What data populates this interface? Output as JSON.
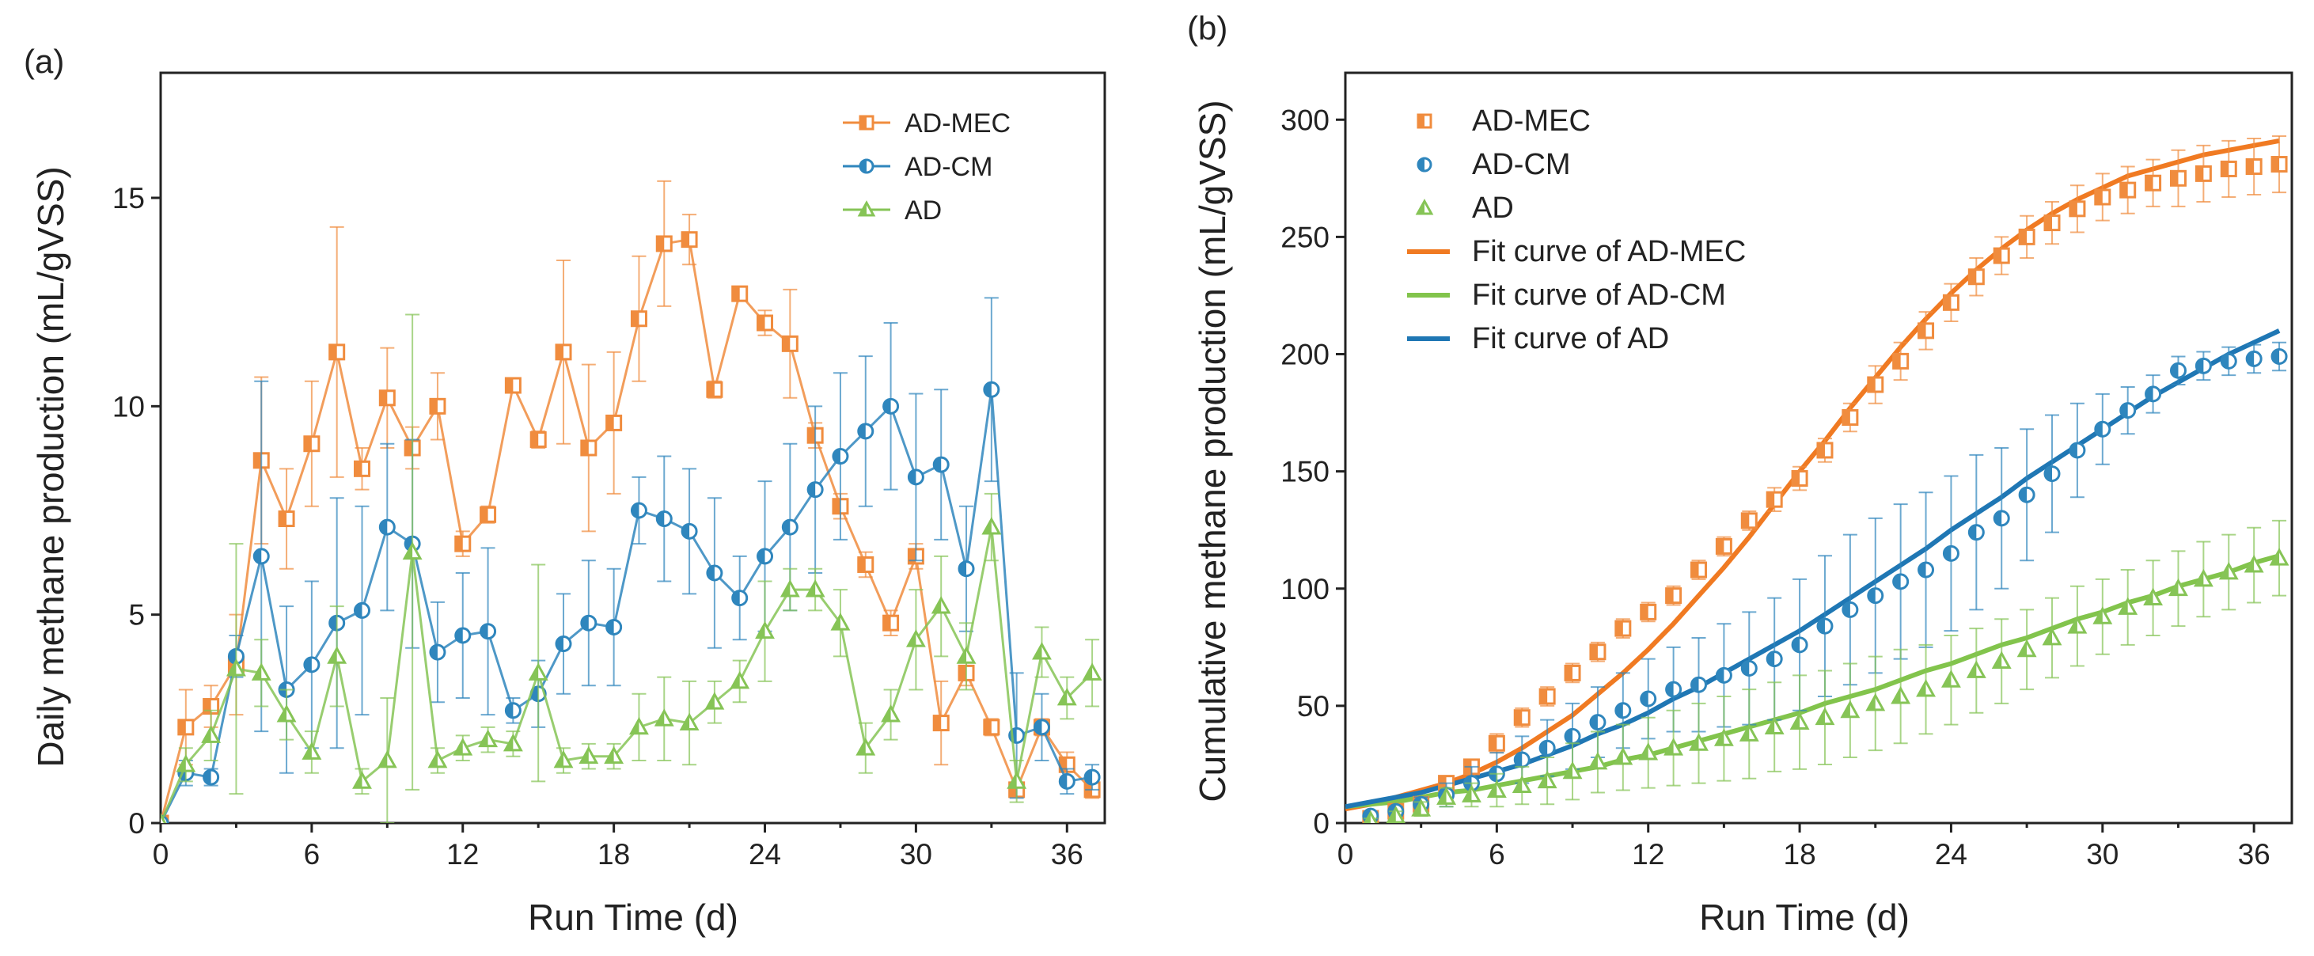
{
  "colors": {
    "AD-MEC": "#f08c3e",
    "AD-CM": "#2f86bd",
    "AD": "#86c456"
  },
  "fit_colors": {
    "AD-MEC": "#f07a22",
    "AD-CM": "#82c44c",
    "AD": "#1f77b4"
  },
  "chart_data": [
    {
      "panel": "(a)",
      "type": "line",
      "title": "",
      "xlabel": "Run Time (d)",
      "ylabel": "Daily methane production (mL/gVSS)",
      "xlim": [
        0,
        37.5
      ],
      "ylim": [
        0,
        18
      ],
      "xticks": [
        0,
        6,
        12,
        18,
        24,
        30,
        36
      ],
      "yticks": [
        0,
        5,
        10,
        15
      ],
      "legend_position": "top-right",
      "series": [
        {
          "name": "AD-MEC",
          "color_key": "AD-MEC",
          "marker": "square",
          "x": [
            0,
            1,
            2,
            3,
            4,
            5,
            6,
            7,
            8,
            9,
            10,
            11,
            12,
            13,
            14,
            15,
            16,
            17,
            18,
            19,
            20,
            21,
            22,
            23,
            24,
            25,
            26,
            27,
            28,
            29,
            30,
            31,
            32,
            33,
            34,
            35,
            36,
            37
          ],
          "values": [
            0,
            2.3,
            2.8,
            3.8,
            8.7,
            7.3,
            9.1,
            11.3,
            8.5,
            10.2,
            9.0,
            10.0,
            6.7,
            7.4,
            10.5,
            9.2,
            11.3,
            9.0,
            9.6,
            12.1,
            13.9,
            14.0,
            10.4,
            12.7,
            12.0,
            11.5,
            9.3,
            7.6,
            6.2,
            4.8,
            6.4,
            2.4,
            3.6,
            2.3,
            0.8,
            2.3,
            1.4,
            0.8
          ],
          "errors": [
            0,
            0.9,
            0.5,
            1.2,
            2.0,
            1.2,
            1.5,
            3.0,
            0.5,
            1.2,
            0.5,
            0.8,
            0.3,
            0.2,
            0.1,
            0.2,
            2.2,
            2.0,
            1.7,
            1.5,
            1.5,
            0.6,
            0.2,
            0.1,
            0.3,
            1.3,
            0.3,
            0.3,
            0.3,
            0.3,
            0.3,
            1.0,
            0.3,
            0.2,
            0.1,
            0.2,
            0.3,
            0.2
          ]
        },
        {
          "name": "AD-CM",
          "color_key": "AD-CM",
          "marker": "circle",
          "x": [
            0,
            1,
            2,
            3,
            4,
            5,
            6,
            7,
            8,
            9,
            10,
            11,
            12,
            13,
            14,
            15,
            16,
            17,
            18,
            19,
            20,
            21,
            22,
            23,
            24,
            25,
            26,
            27,
            28,
            29,
            30,
            31,
            32,
            33,
            34,
            35,
            36,
            37
          ],
          "values": [
            0,
            1.2,
            1.1,
            4.0,
            6.4,
            3.2,
            3.8,
            4.8,
            5.1,
            7.1,
            6.7,
            4.1,
            4.5,
            4.6,
            2.7,
            3.1,
            4.3,
            4.8,
            4.7,
            7.5,
            7.3,
            7.0,
            6.0,
            5.4,
            6.4,
            7.1,
            8.0,
            8.8,
            9.4,
            10.0,
            8.3,
            8.6,
            6.1,
            10.4,
            2.1,
            2.3,
            1.0,
            1.1
          ],
          "errors": [
            0,
            0.3,
            0.2,
            0.5,
            4.2,
            2.0,
            2.0,
            3.0,
            2.5,
            2.0,
            2.5,
            1.2,
            1.5,
            2.0,
            0.3,
            0.8,
            1.2,
            1.5,
            1.4,
            0.8,
            1.5,
            1.5,
            1.8,
            1.0,
            1.8,
            2.0,
            2.0,
            2.0,
            1.8,
            2.0,
            2.0,
            1.8,
            1.5,
            2.2,
            1.5,
            0.8,
            0.3,
            0.3
          ]
        },
        {
          "name": "AD",
          "color_key": "AD",
          "marker": "triangle",
          "x": [
            0,
            1,
            2,
            3,
            4,
            5,
            6,
            7,
            8,
            9,
            10,
            11,
            12,
            13,
            14,
            15,
            16,
            17,
            18,
            19,
            20,
            21,
            22,
            23,
            24,
            25,
            26,
            27,
            28,
            29,
            30,
            31,
            32,
            33,
            34,
            35,
            36,
            37
          ],
          "values": [
            0,
            1.4,
            2.1,
            3.7,
            3.6,
            2.6,
            1.7,
            4.0,
            1.0,
            1.5,
            6.5,
            1.5,
            1.8,
            2.0,
            1.9,
            3.6,
            1.5,
            1.6,
            1.6,
            2.3,
            2.5,
            2.4,
            2.9,
            3.4,
            4.6,
            5.6,
            5.6,
            4.8,
            1.8,
            2.6,
            4.4,
            5.2,
            4.0,
            7.1,
            1.0,
            4.1,
            3.0,
            3.6
          ],
          "errors": [
            0,
            0.4,
            0.6,
            3.0,
            0.8,
            0.6,
            0.5,
            1.2,
            0.3,
            1.5,
            5.7,
            0.3,
            0.3,
            0.3,
            0.3,
            2.6,
            0.3,
            0.3,
            0.3,
            0.8,
            1.0,
            1.0,
            0.5,
            0.5,
            1.2,
            0.5,
            0.5,
            0.8,
            0.6,
            0.6,
            1.2,
            1.2,
            0.8,
            0.8,
            0.5,
            0.6,
            0.5,
            0.8
          ]
        }
      ]
    },
    {
      "panel": "(b)",
      "type": "scatter",
      "title": "",
      "xlabel": "Run Time (d)",
      "ylabel": "Cumulative methane production (mL/gVSS)",
      "xlim": [
        0,
        37.5
      ],
      "ylim": [
        0,
        320
      ],
      "xticks": [
        0,
        6,
        12,
        18,
        24,
        30,
        36
      ],
      "yticks": [
        0,
        50,
        100,
        150,
        200,
        250,
        300
      ],
      "legend_position": "top-left",
      "series": [
        {
          "name": "AD-MEC",
          "color_key": "AD-MEC",
          "marker": "square",
          "x": [
            1,
            2,
            3,
            4,
            5,
            6,
            7,
            8,
            9,
            10,
            11,
            12,
            13,
            14,
            15,
            16,
            17,
            18,
            19,
            20,
            21,
            22,
            23,
            24,
            25,
            26,
            27,
            28,
            29,
            30,
            31,
            32,
            33,
            34,
            35,
            36,
            37
          ],
          "values": [
            2,
            5,
            8,
            17,
            24,
            34,
            45,
            54,
            64,
            73,
            83,
            90,
            97,
            108,
            118,
            129,
            138,
            147,
            159,
            173,
            187,
            197,
            210,
            222,
            233,
            242,
            250,
            256,
            262,
            267,
            270,
            273,
            275,
            277,
            279,
            280,
            281
          ],
          "errors": [
            1,
            2,
            2,
            3,
            3,
            4,
            4,
            4,
            4,
            4,
            4,
            4,
            4,
            4,
            4,
            4,
            5,
            5,
            5,
            6,
            8,
            8,
            8,
            8,
            8,
            8,
            9,
            9,
            10,
            10,
            10,
            10,
            12,
            12,
            12,
            12,
            12
          ]
        },
        {
          "name": "AD-CM",
          "color_key": "AD-CM",
          "marker": "circle",
          "x": [
            1,
            2,
            3,
            4,
            5,
            6,
            7,
            8,
            9,
            10,
            11,
            12,
            13,
            14,
            15,
            16,
            17,
            18,
            19,
            20,
            21,
            22,
            23,
            24,
            25,
            26,
            27,
            28,
            29,
            30,
            31,
            32,
            33,
            34,
            35,
            36,
            37
          ],
          "values": [
            3,
            5,
            8,
            12,
            17,
            21,
            27,
            32,
            37,
            43,
            48,
            53,
            57,
            59,
            63,
            66,
            70,
            76,
            84,
            91,
            97,
            103,
            108,
            115,
            124,
            130,
            140,
            149,
            159,
            168,
            176,
            183,
            193,
            195,
            197,
            198,
            199
          ],
          "errors": [
            1,
            2,
            3,
            5,
            7,
            9,
            10,
            12,
            14,
            15,
            16,
            17,
            18,
            20,
            22,
            24,
            26,
            28,
            30,
            32,
            33,
            33,
            33,
            33,
            33,
            30,
            28,
            25,
            20,
            15,
            10,
            8,
            6,
            6,
            6,
            6,
            6
          ]
        },
        {
          "name": "AD",
          "color_key": "AD",
          "marker": "triangle",
          "x": [
            1,
            2,
            3,
            4,
            5,
            6,
            7,
            8,
            9,
            10,
            11,
            12,
            13,
            14,
            15,
            16,
            17,
            18,
            19,
            20,
            21,
            22,
            23,
            24,
            25,
            26,
            27,
            28,
            29,
            30,
            31,
            32,
            33,
            34,
            35,
            36,
            37
          ],
          "values": [
            1,
            3,
            6,
            11,
            12,
            14,
            16,
            18,
            22,
            26,
            28,
            30,
            32,
            34,
            36,
            38,
            41,
            43,
            45,
            48,
            51,
            54,
            57,
            61,
            65,
            69,
            74,
            79,
            84,
            88,
            92,
            96,
            100,
            104,
            107,
            110,
            113
          ],
          "errors": [
            1,
            2,
            3,
            4,
            5,
            7,
            8,
            10,
            12,
            13,
            14,
            15,
            16,
            17,
            18,
            19,
            19,
            20,
            20,
            20,
            20,
            20,
            19,
            19,
            18,
            18,
            17,
            17,
            17,
            16,
            16,
            16,
            16,
            16,
            16,
            16,
            16
          ]
        },
        {
          "name": "Fit curve of AD-MEC",
          "color_key": "AD-MEC",
          "fit": true,
          "x": [
            0,
            1,
            2,
            3,
            4,
            5,
            6,
            7,
            8,
            9,
            10,
            11,
            12,
            13,
            14,
            15,
            16,
            17,
            18,
            19,
            20,
            21,
            22,
            23,
            24,
            25,
            26,
            27,
            28,
            29,
            30,
            31,
            32,
            33,
            34,
            35,
            36,
            37
          ],
          "values": [
            6,
            8,
            11,
            14,
            17,
            21,
            26,
            32,
            39,
            46,
            55,
            64,
            74,
            85,
            97,
            109,
            122,
            136,
            150,
            163,
            177,
            190,
            203,
            215,
            226,
            236,
            245,
            253,
            260,
            266,
            271,
            276,
            279,
            282,
            285,
            287,
            289,
            291
          ]
        },
        {
          "name": "Fit curve of AD-CM",
          "color_key": "AD-CM",
          "fit": true,
          "x": [
            0,
            1,
            2,
            3,
            4,
            5,
            6,
            7,
            8,
            9,
            10,
            11,
            12,
            13,
            14,
            15,
            16,
            17,
            18,
            19,
            20,
            21,
            22,
            23,
            24,
            25,
            26,
            27,
            28,
            29,
            30,
            31,
            32,
            33,
            34,
            35,
            36,
            37
          ],
          "values": [
            7,
            8,
            9,
            11,
            13,
            14,
            16,
            18,
            20,
            22,
            24,
            27,
            29,
            32,
            35,
            38,
            41,
            44,
            47,
            51,
            54,
            57,
            61,
            65,
            68,
            72,
            76,
            79,
            83,
            87,
            90,
            94,
            97,
            101,
            104,
            107,
            111,
            114
          ]
        },
        {
          "name": "Fit curve of AD",
          "color_key": "AD",
          "fit": true,
          "x": [
            0,
            1,
            2,
            3,
            4,
            5,
            6,
            7,
            8,
            9,
            10,
            11,
            12,
            13,
            14,
            15,
            16,
            17,
            18,
            19,
            20,
            21,
            22,
            23,
            24,
            25,
            26,
            27,
            28,
            29,
            30,
            31,
            32,
            33,
            34,
            35,
            36,
            37
          ],
          "values": [
            7,
            9,
            11,
            13,
            16,
            19,
            22,
            25,
            29,
            33,
            38,
            42,
            47,
            53,
            58,
            64,
            70,
            76,
            82,
            89,
            96,
            103,
            110,
            117,
            125,
            132,
            139,
            147,
            154,
            161,
            168,
            175,
            182,
            188,
            194,
            200,
            205,
            210
          ]
        }
      ]
    }
  ]
}
